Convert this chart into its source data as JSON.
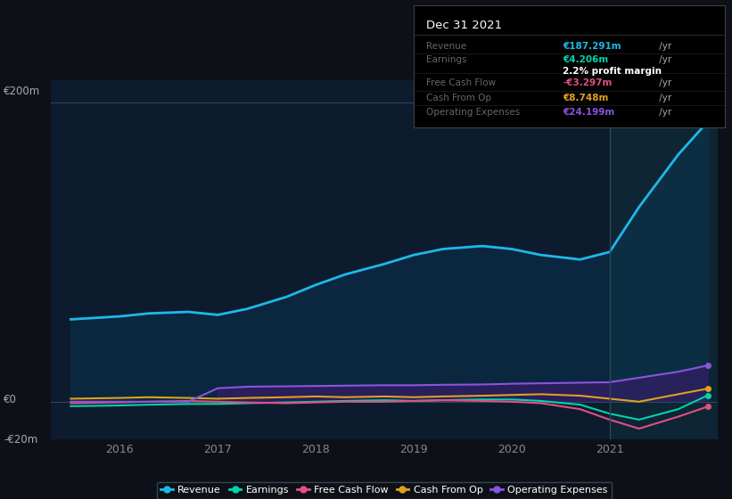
{
  "bg_color": "#0d1117",
  "plot_bg_color": "#0d1b2e",
  "plot_bg_color_right": "#0d2535",
  "grid_color": "#1e3a4a",
  "years": [
    2015.5,
    2016.0,
    2016.3,
    2016.7,
    2017.0,
    2017.3,
    2017.7,
    2018.0,
    2018.3,
    2018.7,
    2019.0,
    2019.3,
    2019.7,
    2020.0,
    2020.3,
    2020.7,
    2021.0,
    2021.3,
    2021.7,
    2022.0
  ],
  "revenue": [
    55,
    57,
    59,
    60,
    58,
    62,
    70,
    78,
    85,
    92,
    98,
    102,
    104,
    102,
    98,
    95,
    100,
    130,
    165,
    187
  ],
  "earnings": [
    -3,
    -2.5,
    -2,
    -1.5,
    -1.5,
    -1,
    -0.5,
    0,
    0.5,
    1,
    0.5,
    1,
    1.5,
    1.5,
    0.5,
    -2,
    -8,
    -12,
    -5,
    4.2
  ],
  "free_cash_flow": [
    -1,
    -0.5,
    0,
    0.5,
    0,
    -0.5,
    -1,
    -0.5,
    0,
    0,
    0.5,
    1,
    0.5,
    0,
    -1,
    -5,
    -12,
    -18,
    -10,
    -3.3
  ],
  "cash_from_op": [
    2,
    2.5,
    3,
    2.5,
    2,
    2.5,
    3,
    3.5,
    3,
    3.5,
    3,
    3.5,
    4,
    4.5,
    5,
    4,
    2,
    0,
    5,
    8.7
  ],
  "operating_expenses": [
    0,
    0,
    0,
    0,
    9,
    10,
    10.3,
    10.5,
    10.7,
    11,
    11,
    11.3,
    11.5,
    12,
    12.3,
    12.7,
    13,
    16,
    20,
    24.2
  ],
  "divider_x": 2021.0,
  "ylim": [
    -25,
    215
  ],
  "ytick_positions": [
    -20,
    0,
    200
  ],
  "ytick_labels": [
    "-€20m",
    "€0",
    "€200m"
  ],
  "xtick_years": [
    2016,
    2017,
    2018,
    2019,
    2020,
    2021
  ],
  "revenue_color": "#1eb8e8",
  "earnings_color": "#00d4aa",
  "fcf_color": "#e05080",
  "cfop_color": "#e0a020",
  "opex_color": "#8855dd",
  "revenue_fill_alpha": 0.35,
  "opex_fill_alpha": 0.6,
  "legend_items": [
    {
      "label": "Revenue",
      "color": "#1eb8e8"
    },
    {
      "label": "Earnings",
      "color": "#00d4aa"
    },
    {
      "label": "Free Cash Flow",
      "color": "#e05080"
    },
    {
      "label": "Cash From Op",
      "color": "#e0a020"
    },
    {
      "label": "Operating Expenses",
      "color": "#8855dd"
    }
  ],
  "infobox": {
    "bg_color": "#000000",
    "border_color": "#333333",
    "date_text": "Dec 31 2021",
    "date_color": "#ffffff",
    "rows": [
      {
        "label": "Revenue",
        "label_color": "#666666",
        "value": "€187.291m",
        "value_color": "#1eb8e8",
        "suffix": " /yr",
        "suffix_color": "#aaaaaa",
        "sub": null
      },
      {
        "label": "Earnings",
        "label_color": "#666666",
        "value": "€4.206m",
        "value_color": "#00d4aa",
        "suffix": " /yr",
        "suffix_color": "#aaaaaa",
        "sub": "2.2% profit margin"
      },
      {
        "label": "Free Cash Flow",
        "label_color": "#666666",
        "value": "-€3.297m",
        "value_color": "#e05080",
        "suffix": " /yr",
        "suffix_color": "#aaaaaa",
        "sub": null
      },
      {
        "label": "Cash From Op",
        "label_color": "#666666",
        "value": "€8.748m",
        "value_color": "#e0a020",
        "suffix": " /yr",
        "suffix_color": "#aaaaaa",
        "sub": null
      },
      {
        "label": "Operating Expenses",
        "label_color": "#666666",
        "value": "€24.199m",
        "value_color": "#8855dd",
        "suffix": " /yr",
        "suffix_color": "#aaaaaa",
        "sub": null
      }
    ]
  }
}
